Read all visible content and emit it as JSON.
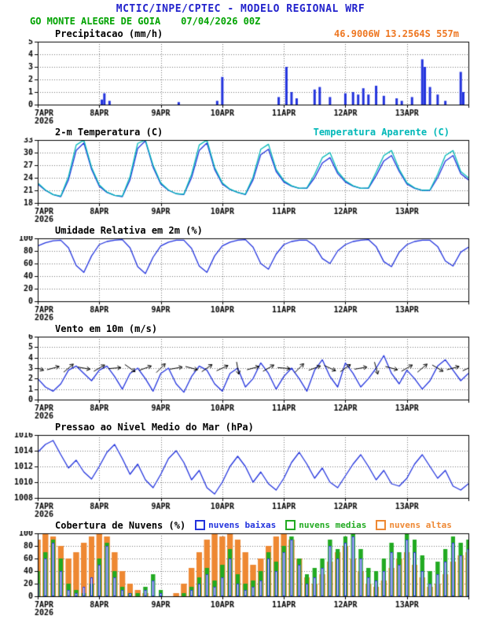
{
  "header": {
    "title": "MCTIC/INPE/CPTEC - MODELO REGIONAL WRF",
    "station": "GO MONTE ALEGRE DE GOIA",
    "run": "07/04/2026 00Z",
    "coords": "46.9006W 13.2564S 557m"
  },
  "colors": {
    "header_blue": "#2222cc",
    "header_green": "#00a300",
    "orange": "#ee7722",
    "line_blue": "#2233dd",
    "cyan": "#00b8b8",
    "cloud_low": "#2233dd",
    "cloud_mid": "#22aa22",
    "cloud_high": "#ee8833"
  },
  "x_axis": {
    "day_labels": [
      "7APR",
      "8APR",
      "9APR",
      "10APR",
      "11APR",
      "12APR",
      "13APR"
    ],
    "year": "2026",
    "total_hours": 168,
    "step_hours": 3
  },
  "chart_data": [
    {
      "id": "precipitation",
      "type": "bar",
      "title": "Precipitacao (mm/h)",
      "ylim": [
        0,
        5
      ],
      "yticks": [
        0,
        1,
        2,
        3,
        4,
        5
      ],
      "bar_color": "#2233dd",
      "events_hours": [
        25,
        26,
        28,
        55,
        70,
        72,
        94,
        97,
        99,
        101,
        108,
        110,
        114,
        120,
        123,
        125,
        127,
        129,
        132,
        135,
        140,
        142,
        146,
        150,
        151,
        153,
        156,
        159,
        165,
        166
      ],
      "events_values": [
        0.4,
        0.9,
        0.3,
        0.2,
        0.3,
        2.2,
        0.6,
        3.0,
        1.0,
        0.5,
        1.2,
        1.4,
        0.6,
        0.9,
        1.0,
        0.8,
        1.3,
        0.8,
        1.5,
        0.7,
        0.5,
        0.3,
        0.6,
        3.6,
        3.0,
        1.4,
        0.8,
        0.3,
        2.6,
        1.0
      ]
    },
    {
      "id": "temperature",
      "type": "line",
      "title": "2-m Temperatura (C)",
      "right_label": "Temperatura Aparente (C)",
      "ylim": [
        18,
        33
      ],
      "yticks": [
        18,
        21,
        24,
        27,
        30,
        33
      ],
      "series": [
        {
          "name": "2-m Temperatura (C)",
          "color": "#2233dd",
          "values": [
            22.5,
            21,
            20,
            19.5,
            23.5,
            30.5,
            32.3,
            26,
            22,
            20.5,
            19.8,
            19.5,
            23.5,
            31,
            32.8,
            26.5,
            22.5,
            21,
            20.2,
            20,
            24,
            30.5,
            32.3,
            26,
            22.5,
            21.2,
            20.5,
            20,
            23.5,
            29.5,
            30.8,
            25.5,
            23,
            22,
            21.5,
            21.5,
            24,
            27.5,
            28.8,
            25,
            23,
            22,
            21.5,
            21.5,
            24.5,
            28,
            29.3,
            25.5,
            22.5,
            21.5,
            21,
            21,
            24,
            28,
            29.3,
            25,
            23.5
          ]
        },
        {
          "name": "Temperatura Aparente (C)",
          "color": "#00b8b8",
          "values": [
            22.8,
            21.1,
            20,
            19.6,
            24.3,
            31.8,
            33,
            26.5,
            22.3,
            20.6,
            19.8,
            19.6,
            24.3,
            32.2,
            33,
            27,
            22.8,
            21.1,
            20.2,
            20.1,
            24.8,
            31.8,
            33,
            26.5,
            22.8,
            21.3,
            20.5,
            20.1,
            24.2,
            30.8,
            32,
            26,
            23.3,
            22.1,
            21.5,
            21.6,
            24.8,
            28.8,
            30,
            25.5,
            23.3,
            22.1,
            21.5,
            21.6,
            25.3,
            29.3,
            30.5,
            26,
            22.8,
            21.6,
            21,
            21.1,
            24.8,
            29.3,
            30.5,
            25.5,
            24
          ]
        }
      ]
    },
    {
      "id": "humidity",
      "type": "line",
      "title": "Umidade Relativa em 2m (%)",
      "ylim": [
        0,
        100
      ],
      "yticks": [
        0,
        20,
        40,
        60,
        80,
        100
      ],
      "series": [
        {
          "name": "Umidade Relativa em 2m (%)",
          "color": "#2233dd",
          "values": [
            88,
            93,
            96,
            97,
            85,
            57,
            46,
            72,
            90,
            95,
            97,
            98,
            85,
            55,
            44,
            70,
            88,
            94,
            97,
            97,
            84,
            56,
            46,
            72,
            88,
            94,
            97,
            98,
            86,
            60,
            51,
            75,
            90,
            95,
            97,
            97,
            88,
            68,
            60,
            80,
            90,
            95,
            97,
            98,
            87,
            63,
            55,
            78,
            90,
            95,
            97,
            97,
            87,
            64,
            56,
            78,
            86
          ]
        }
      ]
    },
    {
      "id": "wind",
      "type": "line",
      "title": "Vento em 10m (m/s)",
      "ylim": [
        0,
        6
      ],
      "yticks": [
        0,
        1,
        2,
        3,
        4,
        5,
        6
      ],
      "series": [
        {
          "name": "Vento em 10m (m/s)",
          "color": "#2233dd",
          "values": [
            2,
            1.2,
            0.8,
            1.5,
            2.8,
            3.2,
            2.5,
            1.8,
            2.8,
            3.2,
            2.2,
            1,
            2.5,
            3,
            2,
            0.8,
            2.5,
            3,
            1.5,
            0.7,
            2.2,
            3.2,
            2.8,
            1.5,
            0.8,
            2.5,
            3,
            1.2,
            2,
            3.5,
            2.5,
            1,
            2.2,
            3,
            2,
            0.8,
            2.8,
            3.8,
            2.2,
            1.2,
            3.5,
            2.5,
            1.2,
            2,
            3,
            4.2,
            2.5,
            1.5,
            2.8,
            2,
            1,
            1.8,
            3.2,
            3.8,
            2.8,
            1.8,
            2.5
          ]
        }
      ],
      "arrows": {
        "step_hours": 6,
        "y_value": 3,
        "directions_deg": [
          -20,
          15,
          40,
          -10,
          30,
          5,
          -35,
          20,
          45,
          10,
          -15,
          35,
          25,
          -80,
          15,
          30,
          -5,
          45,
          20,
          -25,
          35,
          10,
          -75,
          -15,
          30,
          40,
          -30,
          15,
          25
        ]
      }
    },
    {
      "id": "pressure",
      "type": "line",
      "title": "Pressao ao Nivel Medio do Mar (hPa)",
      "ylim": [
        1008,
        1016
      ],
      "yticks": [
        1008,
        1010,
        1012,
        1014,
        1016
      ],
      "series": [
        {
          "name": "Pressao ao Nivel Medio do Mar (hPa)",
          "color": "#2233dd",
          "values": [
            1013.8,
            1014.8,
            1015.3,
            1013.5,
            1011.8,
            1012.8,
            1011.3,
            1010.4,
            1012,
            1013.8,
            1014.8,
            1013,
            1011,
            1012.3,
            1010.3,
            1009.3,
            1011,
            1013,
            1014,
            1012.5,
            1010.3,
            1011.5,
            1009.3,
            1008.5,
            1010,
            1012,
            1013.3,
            1012,
            1010,
            1011.3,
            1009.8,
            1009,
            1010.5,
            1012.5,
            1013.8,
            1012.3,
            1010.5,
            1011.8,
            1010,
            1009.3,
            1010.8,
            1012.3,
            1013.5,
            1012,
            1010.3,
            1011.5,
            1009.8,
            1009.5,
            1010.5,
            1012.3,
            1013.5,
            1012,
            1010.5,
            1011.5,
            1009.5,
            1009,
            1009.8
          ]
        }
      ]
    },
    {
      "id": "clouds",
      "type": "bars-multi",
      "title": "Cobertura de Nuvens (%)",
      "ylim": [
        0,
        100
      ],
      "yticks": [
        0,
        20,
        40,
        60,
        80,
        100
      ],
      "series": [
        {
          "name": "nuvens baixas",
          "color": "#2233dd",
          "fill": false,
          "values": [
            20,
            60,
            85,
            40,
            10,
            5,
            15,
            30,
            50,
            80,
            30,
            10,
            5,
            0,
            10,
            25,
            5,
            0,
            0,
            0,
            10,
            20,
            35,
            15,
            30,
            60,
            20,
            10,
            15,
            25,
            60,
            40,
            70,
            90,
            50,
            20,
            30,
            45,
            80,
            60,
            85,
            95,
            60,
            30,
            25,
            40,
            70,
            50,
            90,
            70,
            40,
            20,
            35,
            55,
            85,
            65,
            75
          ]
        },
        {
          "name": "nuvens medias",
          "color": "#22aa22",
          "fill": true,
          "values": [
            40,
            70,
            90,
            60,
            20,
            10,
            5,
            20,
            60,
            85,
            40,
            15,
            5,
            5,
            15,
            35,
            10,
            0,
            0,
            5,
            15,
            30,
            45,
            25,
            50,
            75,
            35,
            20,
            25,
            40,
            70,
            55,
            80,
            95,
            60,
            35,
            45,
            60,
            90,
            75,
            95,
            100,
            75,
            45,
            40,
            60,
            85,
            70,
            100,
            90,
            65,
            40,
            55,
            75,
            95,
            85,
            90
          ]
        },
        {
          "name": "nuvens altas",
          "color": "#ee8833",
          "fill": true,
          "values": [
            90,
            100,
            95,
            80,
            60,
            70,
            85,
            95,
            100,
            95,
            70,
            40,
            20,
            10,
            5,
            0,
            0,
            0,
            5,
            20,
            45,
            70,
            90,
            100,
            95,
            100,
            90,
            70,
            50,
            60,
            80,
            95,
            100,
            90,
            60,
            30,
            20,
            35,
            55,
            70,
            80,
            60,
            40,
            20,
            15,
            25,
            45,
            60,
            70,
            50,
            30,
            15,
            20,
            35,
            55,
            65,
            70
          ]
        }
      ]
    }
  ]
}
